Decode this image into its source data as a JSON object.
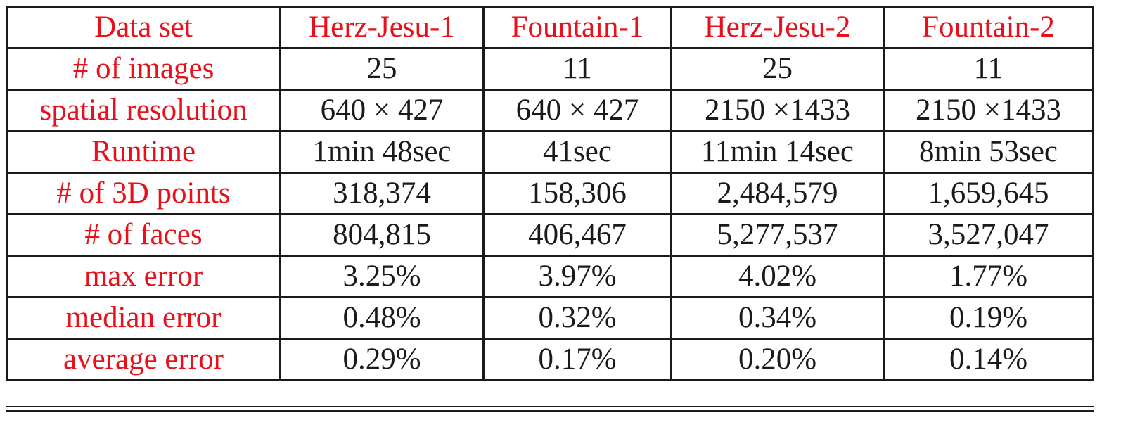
{
  "table": {
    "header": [
      "Data set",
      "Herz-Jesu-1",
      "Fountain-1",
      "Herz-Jesu-2",
      "Fountain-2"
    ],
    "rows": [
      [
        "# of images",
        "25",
        "11",
        "25",
        "11"
      ],
      [
        "spatial resolution",
        "640 × 427",
        "640 × 427",
        "2150 ×1433",
        "2150 ×1433"
      ],
      [
        "Runtime",
        "1min 48sec",
        "41sec",
        "11min 14sec",
        "8min 53sec"
      ],
      [
        "# of 3D points",
        "318,374",
        "158,306",
        "2,484,579",
        "1,659,645"
      ],
      [
        "# of faces",
        "804,815",
        "406,467",
        "5,277,537",
        "3,527,047"
      ],
      [
        "max error",
        "3.25%",
        "3.97%",
        "4.02%",
        "1.77%"
      ],
      [
        "median error",
        "0.48%",
        "0.32%",
        "0.34%",
        "0.19%"
      ],
      [
        "average error",
        "0.29%",
        "0.17%",
        "0.20%",
        "0.14%"
      ]
    ]
  }
}
